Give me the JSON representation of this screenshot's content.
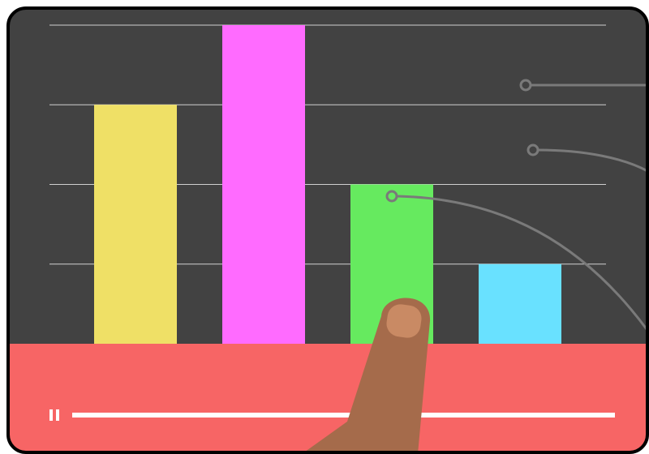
{
  "chart_data": {
    "type": "bar",
    "categories": [
      null,
      null,
      null,
      null
    ],
    "values": [
      3,
      4,
      2,
      1
    ],
    "colors": [
      "#efe066",
      "#ff6bff",
      "#66ea5f",
      "#69e1ff"
    ],
    "ylim": [
      0,
      4
    ],
    "yticks": [
      1,
      2,
      3,
      4
    ],
    "grid": true
  }
}
